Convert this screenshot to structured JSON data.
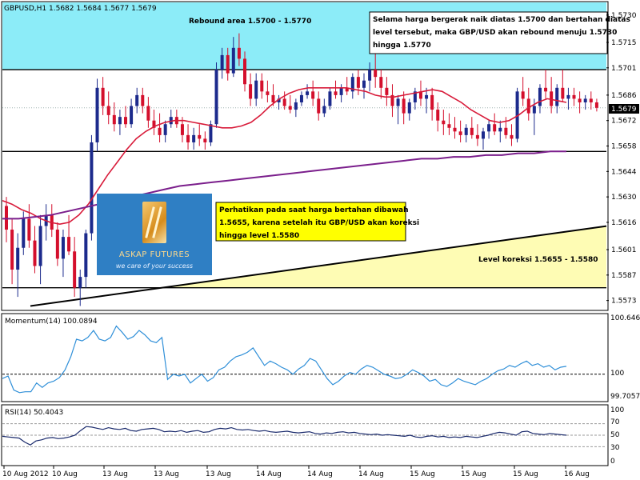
{
  "chart_data": {
    "type": "candlestick",
    "symbol_header": "GBPUSD,H1  1.5682  1.5684  1.5677  1.5679",
    "last_price_label": "1.5679",
    "price_axis_labels": [
      "1.5730",
      "1.5715",
      "1.5701",
      "1.5686",
      "1.5672",
      "1.5658",
      "1.5644",
      "1.5630",
      "1.5616",
      "1.5601",
      "1.5587",
      "1.5573"
    ],
    "x_labels": [
      "10 Aug 2012",
      "10 Aug",
      "13 Aug",
      "13 Aug",
      "13 Aug",
      "14 Aug",
      "14 Aug",
      "14 Aug",
      "15 Aug",
      "15 Aug",
      "15 Aug",
      "16 Aug"
    ],
    "ylim": [
      1.5568,
      1.5737
    ],
    "levels": {
      "resistance": 1.57,
      "support": 1.5655,
      "lower": 1.558,
      "rebound_zone": [
        1.57,
        1.5737
      ],
      "trendline": [
        [
          0,
          1.557
        ],
        [
          127,
          1.5625
        ]
      ]
    },
    "candles": [
      [
        1.5625,
        1.563,
        1.5605,
        1.5612
      ],
      [
        1.5612,
        1.5618,
        1.5582,
        1.559
      ],
      [
        1.559,
        1.561,
        1.5575,
        1.5602
      ],
      [
        1.5602,
        1.5622,
        1.5598,
        1.5618
      ],
      [
        1.5618,
        1.5626,
        1.5602,
        1.5606
      ],
      [
        1.5606,
        1.5614,
        1.5588,
        1.5592
      ],
      [
        1.5592,
        1.562,
        1.5582,
        1.5614
      ],
      [
        1.5614,
        1.5626,
        1.5606,
        1.562
      ],
      [
        1.562,
        1.5626,
        1.5608,
        1.5612
      ],
      [
        1.5612,
        1.5616,
        1.5592,
        1.5596
      ],
      [
        1.5596,
        1.5612,
        1.5586,
        1.5608
      ],
      [
        1.5608,
        1.562,
        1.5598,
        1.56
      ],
      [
        1.56,
        1.5608,
        1.5575,
        1.558
      ],
      [
        1.558,
        1.559,
        1.557,
        1.5586
      ],
      [
        1.5586,
        1.5612,
        1.558,
        1.561
      ],
      [
        1.561,
        1.5664,
        1.5606,
        1.566
      ],
      [
        1.566,
        1.5695,
        1.5655,
        1.569
      ],
      [
        1.569,
        1.5696,
        1.5675,
        1.568
      ],
      [
        1.568,
        1.5688,
        1.567,
        1.5675
      ],
      [
        1.5675,
        1.5682,
        1.5666,
        1.567
      ],
      [
        1.567,
        1.5678,
        1.5664,
        1.5674
      ],
      [
        1.5674,
        1.568,
        1.5668,
        1.567
      ],
      [
        1.567,
        1.5684,
        1.5668,
        1.568
      ],
      [
        1.568,
        1.569,
        1.5676,
        1.5686
      ],
      [
        1.5686,
        1.569,
        1.5676,
        1.568
      ],
      [
        1.568,
        1.5685,
        1.5668,
        1.5672
      ],
      [
        1.5672,
        1.5678,
        1.5664,
        1.5668
      ],
      [
        1.5668,
        1.5676,
        1.566,
        1.5664
      ],
      [
        1.5664,
        1.5672,
        1.566,
        1.567
      ],
      [
        1.567,
        1.5678,
        1.5668,
        1.5674
      ],
      [
        1.5674,
        1.5678,
        1.5668,
        1.567
      ],
      [
        1.567,
        1.5674,
        1.566,
        1.5664
      ],
      [
        1.5664,
        1.567,
        1.5656,
        1.566
      ],
      [
        1.566,
        1.5668,
        1.5656,
        1.5664
      ],
      [
        1.5664,
        1.567,
        1.5658,
        1.5662
      ],
      [
        1.5662,
        1.5666,
        1.5656,
        1.566
      ],
      [
        1.566,
        1.5672,
        1.5658,
        1.567
      ],
      [
        1.567,
        1.5704,
        1.5668,
        1.57
      ],
      [
        1.57,
        1.5712,
        1.5695,
        1.5708
      ],
      [
        1.5708,
        1.5712,
        1.5694,
        1.5698
      ],
      [
        1.5698,
        1.5718,
        1.5696,
        1.5712
      ],
      [
        1.5712,
        1.572,
        1.5702,
        1.5706
      ],
      [
        1.5706,
        1.571,
        1.5688,
        1.5692
      ],
      [
        1.5692,
        1.5698,
        1.568,
        1.5684
      ],
      [
        1.5684,
        1.5698,
        1.568,
        1.5694
      ],
      [
        1.5694,
        1.5698,
        1.5684,
        1.5688
      ],
      [
        1.5688,
        1.5694,
        1.5682,
        1.5686
      ],
      [
        1.5686,
        1.5692,
        1.568,
        1.5682
      ],
      [
        1.5682,
        1.5686,
        1.5678,
        1.5684
      ],
      [
        1.5684,
        1.5688,
        1.5678,
        1.568
      ],
      [
        1.568,
        1.5686,
        1.5676,
        1.5678
      ],
      [
        1.5678,
        1.5684,
        1.5674,
        1.5682
      ],
      [
        1.5682,
        1.5688,
        1.568,
        1.5686
      ],
      [
        1.5686,
        1.5692,
        1.5684,
        1.5688
      ],
      [
        1.5688,
        1.5694,
        1.568,
        1.5684
      ],
      [
        1.5684,
        1.5688,
        1.5672,
        1.5676
      ],
      [
        1.5676,
        1.5684,
        1.5674,
        1.568
      ],
      [
        1.568,
        1.569,
        1.5678,
        1.5688
      ],
      [
        1.5688,
        1.5694,
        1.5684,
        1.5686
      ],
      [
        1.5686,
        1.5692,
        1.5682,
        1.569
      ],
      [
        1.569,
        1.5696,
        1.5686,
        1.5688
      ],
      [
        1.5688,
        1.5698,
        1.5684,
        1.5696
      ],
      [
        1.5696,
        1.57,
        1.5686,
        1.569
      ],
      [
        1.569,
        1.5698,
        1.5684,
        1.5694
      ],
      [
        1.5694,
        1.5704,
        1.5688,
        1.57
      ],
      [
        1.57,
        1.5728,
        1.569,
        1.5696
      ],
      [
        1.5696,
        1.57,
        1.5684,
        1.569
      ],
      [
        1.569,
        1.5696,
        1.568,
        1.5686
      ],
      [
        1.5686,
        1.5692,
        1.5674,
        1.568
      ],
      [
        1.568,
        1.5686,
        1.567,
        1.5684
      ],
      [
        1.5684,
        1.5688,
        1.567,
        1.5676
      ],
      [
        1.5676,
        1.5684,
        1.5672,
        1.5682
      ],
      [
        1.5682,
        1.569,
        1.5678,
        1.5688
      ],
      [
        1.5688,
        1.5694,
        1.568,
        1.5684
      ],
      [
        1.5684,
        1.569,
        1.5676,
        1.5686
      ],
      [
        1.5686,
        1.569,
        1.5672,
        1.5678
      ],
      [
        1.5678,
        1.5682,
        1.5666,
        1.5672
      ],
      [
        1.5672,
        1.5678,
        1.5664,
        1.567
      ],
      [
        1.567,
        1.5676,
        1.5664,
        1.5668
      ],
      [
        1.5668,
        1.5674,
        1.5662,
        1.5666
      ],
      [
        1.5666,
        1.5672,
        1.566,
        1.5664
      ],
      [
        1.5664,
        1.567,
        1.566,
        1.5668
      ],
      [
        1.5668,
        1.5674,
        1.5662,
        1.5664
      ],
      [
        1.5664,
        1.567,
        1.5658,
        1.5662
      ],
      [
        1.5662,
        1.5668,
        1.5656,
        1.5666
      ],
      [
        1.5666,
        1.5672,
        1.5662,
        1.567
      ],
      [
        1.567,
        1.5676,
        1.5664,
        1.5666
      ],
      [
        1.5666,
        1.5672,
        1.566,
        1.5668
      ],
      [
        1.5668,
        1.5674,
        1.5662,
        1.5664
      ],
      [
        1.5664,
        1.567,
        1.5658,
        1.5662
      ],
      [
        1.5662,
        1.569,
        1.566,
        1.5688
      ],
      [
        1.5688,
        1.5696,
        1.568,
        1.5684
      ],
      [
        1.5684,
        1.569,
        1.5672,
        1.5676
      ],
      [
        1.5676,
        1.5684,
        1.5664,
        1.568
      ],
      [
        1.568,
        1.5692,
        1.5676,
        1.569
      ],
      [
        1.569,
        1.57,
        1.5684,
        1.5688
      ],
      [
        1.5688,
        1.5696,
        1.5676,
        1.568
      ],
      [
        1.568,
        1.5692,
        1.5676,
        1.569
      ],
      [
        1.569,
        1.57,
        1.5682,
        1.5684
      ],
      [
        1.5684,
        1.569,
        1.5678,
        1.5686
      ],
      [
        1.5686,
        1.569,
        1.568,
        1.5684
      ],
      [
        1.5684,
        1.5688,
        1.5676,
        1.5682
      ],
      [
        1.5682,
        1.5686,
        1.5678,
        1.5684
      ],
      [
        1.5684,
        1.5688,
        1.5678,
        1.5682
      ],
      [
        1.5682,
        1.5684,
        1.5677,
        1.5679
      ]
    ],
    "series": [
      {
        "name": "MA fast",
        "color": "#d81b3a",
        "values": [
          1.5628,
          1.5626,
          1.5623,
          1.5621,
          1.5618,
          1.5616,
          1.5615,
          1.5616,
          1.562,
          1.5626,
          1.5634,
          1.5642,
          1.5649,
          1.5656,
          1.5662,
          1.5666,
          1.5669,
          1.5671,
          1.5672,
          1.5672,
          1.5671,
          1.567,
          1.5669,
          1.5668,
          1.5668,
          1.5669,
          1.5671,
          1.5675,
          1.568,
          1.5684,
          1.5687,
          1.5689,
          1.569,
          1.569,
          1.569,
          1.569,
          1.569,
          1.5689,
          1.5688,
          1.5686,
          1.5685,
          1.5685,
          1.5686,
          1.5687,
          1.5688,
          1.5689,
          1.5688,
          1.5685,
          1.5682,
          1.5678,
          1.5675,
          1.5672,
          1.5671,
          1.5672,
          1.5675,
          1.5679,
          1.5682,
          1.5684,
          1.5683,
          1.5682
        ]
      },
      {
        "name": "MA slow",
        "color": "#7b1f8c",
        "values": [
          1.5618,
          1.5618,
          1.5619,
          1.562,
          1.5622,
          1.5624,
          1.5626,
          1.5628,
          1.563,
          1.5632,
          1.5634,
          1.5636,
          1.5637,
          1.5638,
          1.5639,
          1.564,
          1.5641,
          1.5642,
          1.5643,
          1.5644,
          1.5645,
          1.5646,
          1.5647,
          1.5648,
          1.5649,
          1.565,
          1.5651,
          1.5651,
          1.5652,
          1.5652,
          1.5653,
          1.5653,
          1.5654,
          1.5654,
          1.5655,
          1.5655
        ]
      }
    ],
    "annotations": {
      "rebound_label": "Rebound area 1.5700 - 1.5770",
      "note_top": [
        "Selama harga bergerak naik diatas 1.5700 dan bertahan diatas",
        "level tersebut, maka GBP/USD akan rebound menuju 1.5730",
        "hingga 1.5770"
      ],
      "note_mid": [
        "Perhatikan pada saat harga bertahan dibawah",
        "1.5655, karena setelah itu GBP/USD akan koreksi",
        "hingga level 1.5580"
      ],
      "koreksi_label": "Level koreksi 1.5655 - 1.5580"
    },
    "momentum": {
      "title": "Momentum(14) 100.0894",
      "axis_labels": [
        "100.6461",
        "100",
        "99.7057"
      ],
      "range": [
        99.7057,
        100.6461
      ],
      "level": 100,
      "values": [
        99.95,
        99.98,
        99.82,
        99.79,
        99.8,
        99.8,
        99.9,
        99.85,
        99.9,
        99.92,
        99.96,
        100.05,
        100.2,
        100.4,
        100.38,
        100.42,
        100.5,
        100.4,
        100.38,
        100.42,
        100.55,
        100.48,
        100.4,
        100.43,
        100.5,
        100.45,
        100.38,
        100.36,
        100.42,
        99.94,
        100.0,
        99.98,
        100.0,
        99.9,
        99.95,
        100.0,
        99.92,
        99.96,
        100.05,
        100.08,
        100.15,
        100.2,
        100.22,
        100.25,
        100.3,
        100.2,
        100.1,
        100.15,
        100.12,
        100.08,
        100.05,
        100.0,
        100.06,
        100.1,
        100.18,
        100.15,
        100.05,
        99.95,
        99.88,
        99.92,
        99.98,
        100.02,
        100.0,
        100.06,
        100.1,
        100.08,
        100.04,
        100.0,
        99.98,
        99.95,
        99.96,
        100.0,
        100.05,
        100.02,
        99.98,
        99.92,
        99.94,
        99.88,
        99.86,
        99.9,
        99.95,
        99.92,
        99.9,
        99.88,
        99.92,
        99.95,
        100.0,
        100.04,
        100.06,
        100.1,
        100.08,
        100.12,
        100.15,
        100.1,
        100.12,
        100.08,
        100.1,
        100.05,
        100.08,
        100.09
      ]
    },
    "rsi": {
      "title": "RSI(14) 50.4043",
      "axis_labels": [
        "70",
        "50",
        "30",
        "100",
        "0"
      ],
      "range": [
        0,
        100
      ],
      "levels": [
        70,
        50,
        30
      ],
      "values": [
        48,
        47,
        46,
        45,
        38,
        33,
        40,
        42,
        45,
        46,
        44,
        45,
        47,
        50,
        58,
        65,
        64,
        62,
        60,
        63,
        61,
        60,
        62,
        58,
        57,
        60,
        61,
        62,
        60,
        56,
        57,
        56,
        58,
        55,
        57,
        58,
        55,
        56,
        60,
        62,
        61,
        63,
        60,
        59,
        60,
        58,
        57,
        58,
        56,
        55,
        56,
        57,
        55,
        54,
        55,
        56,
        53,
        52,
        54,
        53,
        55,
        56,
        54,
        55,
        53,
        52,
        51,
        52,
        50,
        51,
        50,
        49,
        48,
        50,
        47,
        46,
        48,
        49,
        47,
        48,
        46,
        47,
        46,
        48,
        47,
        46,
        48,
        50,
        53,
        55,
        54,
        52,
        50,
        56,
        57,
        53,
        52,
        51,
        53,
        52,
        51,
        50
      ]
    }
  }
}
